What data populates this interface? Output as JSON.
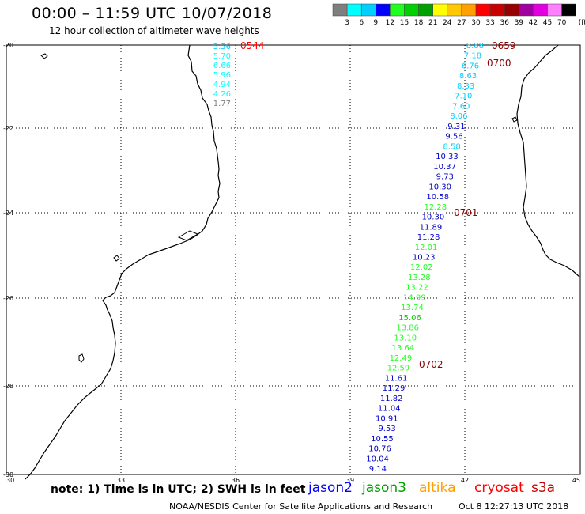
{
  "header": {
    "title": "00:00 – 11:59 UTC 10/07/2018",
    "subtitle": "12 hour collection of altimeter wave heights"
  },
  "legend": {
    "colors": [
      "#7f7f7f",
      "#00ffff",
      "#00cfff",
      "#0000ff",
      "#1fff1f",
      "#00cf00",
      "#00a000",
      "#ffff00",
      "#ffc800",
      "#ffa000",
      "#ff0000",
      "#c80000",
      "#960000",
      "#a000a0",
      "#e000e0",
      "#ff80ff",
      "#000000"
    ],
    "labels": [
      "3",
      "6",
      "9",
      "12",
      "15",
      "18",
      "21",
      "24",
      "27",
      "30",
      "33",
      "36",
      "39",
      "42",
      "45",
      "70"
    ],
    "unit": "(ft)"
  },
  "map": {
    "lon_ticks": [
      "30",
      "33",
      "36",
      "39",
      "42",
      "45"
    ],
    "lat_ticks": [
      "-20",
      "-22",
      "-24",
      "-26",
      "-28",
      "-30"
    ]
  },
  "tracks": [
    {
      "name": "track-0544",
      "time_label": "0544",
      "time_color": "#ff0000",
      "values": [
        {
          "v": "5.56",
          "c": "#00cfff"
        },
        {
          "v": "5.70",
          "c": "#00ffff"
        },
        {
          "v": "6.66",
          "c": "#00ffff"
        },
        {
          "v": "5.96",
          "c": "#00ffff"
        },
        {
          "v": "4.94",
          "c": "#00ffff"
        },
        {
          "v": "4.26",
          "c": "#00ffff"
        },
        {
          "v": "1.77",
          "c": "#7f7f7f"
        }
      ]
    },
    {
      "name": "track-east",
      "time_labels": [
        "0659",
        "0700",
        "0701",
        "0702"
      ],
      "values": [
        {
          "v": "8.88",
          "c": "#00cfff"
        },
        {
          "v": "7.18",
          "c": "#00cfff"
        },
        {
          "v": "6.76",
          "c": "#00cfff"
        },
        {
          "v": "8.63",
          "c": "#00cfff"
        },
        {
          "v": "8.33",
          "c": "#00cfff"
        },
        {
          "v": "7.10",
          "c": "#00cfff"
        },
        {
          "v": "7.60",
          "c": "#00cfff"
        },
        {
          "v": "8.06",
          "c": "#00cfff"
        },
        {
          "v": "9.31",
          "c": "#0000cd"
        },
        {
          "v": "9.56",
          "c": "#0000cd"
        },
        {
          "v": "8.58",
          "c": "#00cfff"
        },
        {
          "v": "10.33",
          "c": "#0000cd"
        },
        {
          "v": "10.37",
          "c": "#0000cd"
        },
        {
          "v": "9.73",
          "c": "#0000cd"
        },
        {
          "v": "10.30",
          "c": "#0000cd"
        },
        {
          "v": "10.58",
          "c": "#0000cd"
        },
        {
          "v": "12.28",
          "c": "#1fff1f"
        },
        {
          "v": "10.30",
          "c": "#0000cd"
        },
        {
          "v": "11.89",
          "c": "#0000cd"
        },
        {
          "v": "11.28",
          "c": "#0000cd"
        },
        {
          "v": "12.01",
          "c": "#1fff1f"
        },
        {
          "v": "10.23",
          "c": "#0000cd"
        },
        {
          "v": "12.02",
          "c": "#1fff1f"
        },
        {
          "v": "13.28",
          "c": "#1fff1f"
        },
        {
          "v": "13.22",
          "c": "#1fff1f"
        },
        {
          "v": "14.99",
          "c": "#1fff1f"
        },
        {
          "v": "13.74",
          "c": "#1fff1f"
        },
        {
          "v": "15.06",
          "c": "#00cf00"
        },
        {
          "v": "13.86",
          "c": "#1fff1f"
        },
        {
          "v": "13.10",
          "c": "#1fff1f"
        },
        {
          "v": "13.64",
          "c": "#1fff1f"
        },
        {
          "v": "12.49",
          "c": "#1fff1f"
        },
        {
          "v": "12.59",
          "c": "#1fff1f"
        },
        {
          "v": "11.61",
          "c": "#0000cd"
        },
        {
          "v": "11.29",
          "c": "#0000cd"
        },
        {
          "v": "11.82",
          "c": "#0000cd"
        },
        {
          "v": "11.04",
          "c": "#0000cd"
        },
        {
          "v": "10.91",
          "c": "#0000cd"
        },
        {
          "v": "9.53",
          "c": "#0000cd"
        },
        {
          "v": "10.55",
          "c": "#0000cd"
        },
        {
          "v": "10.76",
          "c": "#0000cd"
        },
        {
          "v": "10.04",
          "c": "#0000cd"
        },
        {
          "v": "9.14",
          "c": "#0000cd"
        }
      ]
    }
  ],
  "footer": {
    "note": "note:  1) Time is in UTC;  2) SWH is in feet",
    "satellites": [
      {
        "name": "jason2",
        "color": "#0000ff"
      },
      {
        "name": "jason3",
        "color": "#00a000"
      },
      {
        "name": "altika",
        "color": "#ffa000"
      },
      {
        "name": "cryosat",
        "color": "#ff0000"
      },
      {
        "name": "s3a",
        "color": "#c80000"
      }
    ],
    "credit": "NOAA/NESDIS Center for Satellite Applications and Research",
    "timestamp": "Oct  8 12:27:13 UTC 2018"
  }
}
